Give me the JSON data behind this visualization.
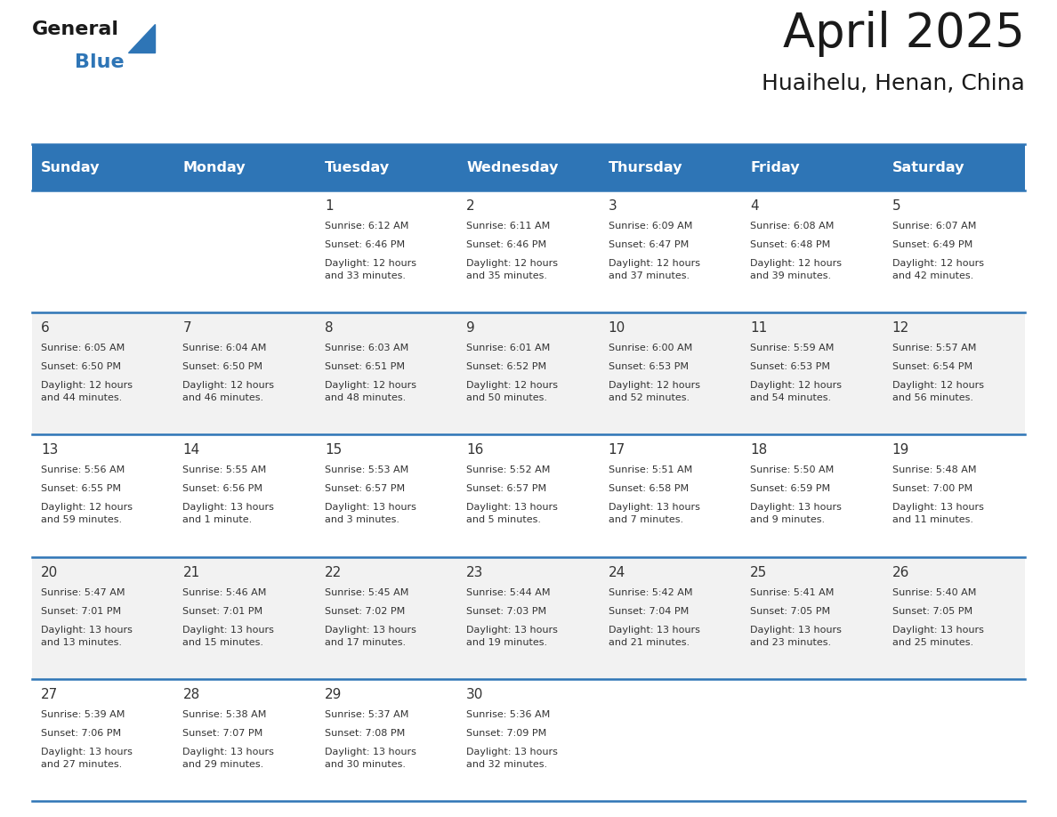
{
  "title": "April 2025",
  "subtitle": "Huaihelu, Henan, China",
  "header_bg": "#2E75B6",
  "header_text_color": "#FFFFFF",
  "row_bg_odd": "#FFFFFF",
  "row_bg_even": "#F2F2F2",
  "separator_color": "#2E75B6",
  "days_of_week": [
    "Sunday",
    "Monday",
    "Tuesday",
    "Wednesday",
    "Thursday",
    "Friday",
    "Saturday"
  ],
  "weeks": [
    [
      {
        "day": "",
        "sunrise": "",
        "sunset": "",
        "daylight": ""
      },
      {
        "day": "",
        "sunrise": "",
        "sunset": "",
        "daylight": ""
      },
      {
        "day": "1",
        "sunrise": "Sunrise: 6:12 AM",
        "sunset": "Sunset: 6:46 PM",
        "daylight": "Daylight: 12 hours\nand 33 minutes."
      },
      {
        "day": "2",
        "sunrise": "Sunrise: 6:11 AM",
        "sunset": "Sunset: 6:46 PM",
        "daylight": "Daylight: 12 hours\nand 35 minutes."
      },
      {
        "day": "3",
        "sunrise": "Sunrise: 6:09 AM",
        "sunset": "Sunset: 6:47 PM",
        "daylight": "Daylight: 12 hours\nand 37 minutes."
      },
      {
        "day": "4",
        "sunrise": "Sunrise: 6:08 AM",
        "sunset": "Sunset: 6:48 PM",
        "daylight": "Daylight: 12 hours\nand 39 minutes."
      },
      {
        "day": "5",
        "sunrise": "Sunrise: 6:07 AM",
        "sunset": "Sunset: 6:49 PM",
        "daylight": "Daylight: 12 hours\nand 42 minutes."
      }
    ],
    [
      {
        "day": "6",
        "sunrise": "Sunrise: 6:05 AM",
        "sunset": "Sunset: 6:50 PM",
        "daylight": "Daylight: 12 hours\nand 44 minutes."
      },
      {
        "day": "7",
        "sunrise": "Sunrise: 6:04 AM",
        "sunset": "Sunset: 6:50 PM",
        "daylight": "Daylight: 12 hours\nand 46 minutes."
      },
      {
        "day": "8",
        "sunrise": "Sunrise: 6:03 AM",
        "sunset": "Sunset: 6:51 PM",
        "daylight": "Daylight: 12 hours\nand 48 minutes."
      },
      {
        "day": "9",
        "sunrise": "Sunrise: 6:01 AM",
        "sunset": "Sunset: 6:52 PM",
        "daylight": "Daylight: 12 hours\nand 50 minutes."
      },
      {
        "day": "10",
        "sunrise": "Sunrise: 6:00 AM",
        "sunset": "Sunset: 6:53 PM",
        "daylight": "Daylight: 12 hours\nand 52 minutes."
      },
      {
        "day": "11",
        "sunrise": "Sunrise: 5:59 AM",
        "sunset": "Sunset: 6:53 PM",
        "daylight": "Daylight: 12 hours\nand 54 minutes."
      },
      {
        "day": "12",
        "sunrise": "Sunrise: 5:57 AM",
        "sunset": "Sunset: 6:54 PM",
        "daylight": "Daylight: 12 hours\nand 56 minutes."
      }
    ],
    [
      {
        "day": "13",
        "sunrise": "Sunrise: 5:56 AM",
        "sunset": "Sunset: 6:55 PM",
        "daylight": "Daylight: 12 hours\nand 59 minutes."
      },
      {
        "day": "14",
        "sunrise": "Sunrise: 5:55 AM",
        "sunset": "Sunset: 6:56 PM",
        "daylight": "Daylight: 13 hours\nand 1 minute."
      },
      {
        "day": "15",
        "sunrise": "Sunrise: 5:53 AM",
        "sunset": "Sunset: 6:57 PM",
        "daylight": "Daylight: 13 hours\nand 3 minutes."
      },
      {
        "day": "16",
        "sunrise": "Sunrise: 5:52 AM",
        "sunset": "Sunset: 6:57 PM",
        "daylight": "Daylight: 13 hours\nand 5 minutes."
      },
      {
        "day": "17",
        "sunrise": "Sunrise: 5:51 AM",
        "sunset": "Sunset: 6:58 PM",
        "daylight": "Daylight: 13 hours\nand 7 minutes."
      },
      {
        "day": "18",
        "sunrise": "Sunrise: 5:50 AM",
        "sunset": "Sunset: 6:59 PM",
        "daylight": "Daylight: 13 hours\nand 9 minutes."
      },
      {
        "day": "19",
        "sunrise": "Sunrise: 5:48 AM",
        "sunset": "Sunset: 7:00 PM",
        "daylight": "Daylight: 13 hours\nand 11 minutes."
      }
    ],
    [
      {
        "day": "20",
        "sunrise": "Sunrise: 5:47 AM",
        "sunset": "Sunset: 7:01 PM",
        "daylight": "Daylight: 13 hours\nand 13 minutes."
      },
      {
        "day": "21",
        "sunrise": "Sunrise: 5:46 AM",
        "sunset": "Sunset: 7:01 PM",
        "daylight": "Daylight: 13 hours\nand 15 minutes."
      },
      {
        "day": "22",
        "sunrise": "Sunrise: 5:45 AM",
        "sunset": "Sunset: 7:02 PM",
        "daylight": "Daylight: 13 hours\nand 17 minutes."
      },
      {
        "day": "23",
        "sunrise": "Sunrise: 5:44 AM",
        "sunset": "Sunset: 7:03 PM",
        "daylight": "Daylight: 13 hours\nand 19 minutes."
      },
      {
        "day": "24",
        "sunrise": "Sunrise: 5:42 AM",
        "sunset": "Sunset: 7:04 PM",
        "daylight": "Daylight: 13 hours\nand 21 minutes."
      },
      {
        "day": "25",
        "sunrise": "Sunrise: 5:41 AM",
        "sunset": "Sunset: 7:05 PM",
        "daylight": "Daylight: 13 hours\nand 23 minutes."
      },
      {
        "day": "26",
        "sunrise": "Sunrise: 5:40 AM",
        "sunset": "Sunset: 7:05 PM",
        "daylight": "Daylight: 13 hours\nand 25 minutes."
      }
    ],
    [
      {
        "day": "27",
        "sunrise": "Sunrise: 5:39 AM",
        "sunset": "Sunset: 7:06 PM",
        "daylight": "Daylight: 13 hours\nand 27 minutes."
      },
      {
        "day": "28",
        "sunrise": "Sunrise: 5:38 AM",
        "sunset": "Sunset: 7:07 PM",
        "daylight": "Daylight: 13 hours\nand 29 minutes."
      },
      {
        "day": "29",
        "sunrise": "Sunrise: 5:37 AM",
        "sunset": "Sunset: 7:08 PM",
        "daylight": "Daylight: 13 hours\nand 30 minutes."
      },
      {
        "day": "30",
        "sunrise": "Sunrise: 5:36 AM",
        "sunset": "Sunset: 7:09 PM",
        "daylight": "Daylight: 13 hours\nand 32 minutes."
      },
      {
        "day": "",
        "sunrise": "",
        "sunset": "",
        "daylight": ""
      },
      {
        "day": "",
        "sunrise": "",
        "sunset": "",
        "daylight": ""
      },
      {
        "day": "",
        "sunrise": "",
        "sunset": "",
        "daylight": ""
      }
    ]
  ],
  "fig_width": 11.88,
  "fig_height": 9.18,
  "dpi": 100
}
